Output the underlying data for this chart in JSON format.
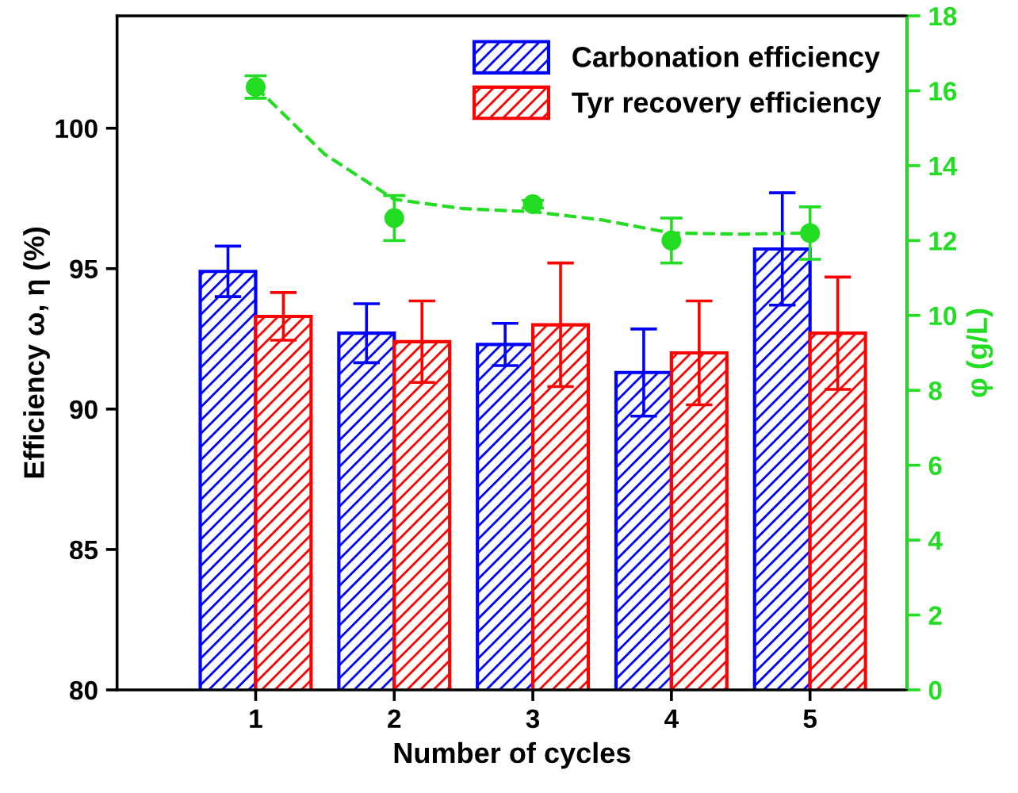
{
  "chart_data": {
    "type": "bar",
    "xlabel": "Number of cycles",
    "ylabel": "Efficiency ω, η (%)",
    "y2label": "φ (g/L)",
    "x": [
      1,
      2,
      3,
      4,
      5
    ],
    "xlim": [
      0,
      5.7
    ],
    "xticks": [
      1,
      2,
      3,
      4,
      5
    ],
    "ylim": [
      80,
      104
    ],
    "yticks": [
      80,
      85,
      90,
      95,
      100
    ],
    "y2lim": [
      0,
      18
    ],
    "y2ticks": [
      0,
      2,
      4,
      6,
      8,
      10,
      12,
      14,
      16,
      18
    ],
    "legend": "top right",
    "grid": false,
    "series": [
      {
        "name": "Carbonation efficiency",
        "color": "#0000ff",
        "values": [
          94.9,
          92.7,
          92.3,
          91.3,
          95.7
        ],
        "errors": [
          0.9,
          1.05,
          0.75,
          1.55,
          2.0
        ]
      },
      {
        "name": "Tyr recovery efficiency",
        "color": "#ff0000",
        "values": [
          93.3,
          92.4,
          93.0,
          92.0,
          92.7
        ],
        "errors": [
          0.85,
          1.45,
          2.2,
          1.85,
          2.0
        ]
      },
      {
        "type": "scatter",
        "axis": "y2",
        "color": "#22dd22",
        "marker": "circle",
        "values": [
          16.1,
          12.6,
          12.97,
          12.0,
          12.2
        ],
        "errors": [
          0.3,
          0.6,
          0.1,
          0.6,
          0.7
        ]
      },
      {
        "type": "line",
        "axis": "y2",
        "color": "#22dd22",
        "line_style": "dashed",
        "marker": "none",
        "x": [
          1,
          1.5,
          2,
          2.5,
          3,
          3.5,
          4,
          4.5,
          5
        ],
        "values": [
          16.1,
          14.3,
          13.1,
          12.85,
          12.77,
          12.55,
          12.2,
          12.17,
          12.2
        ]
      }
    ]
  }
}
